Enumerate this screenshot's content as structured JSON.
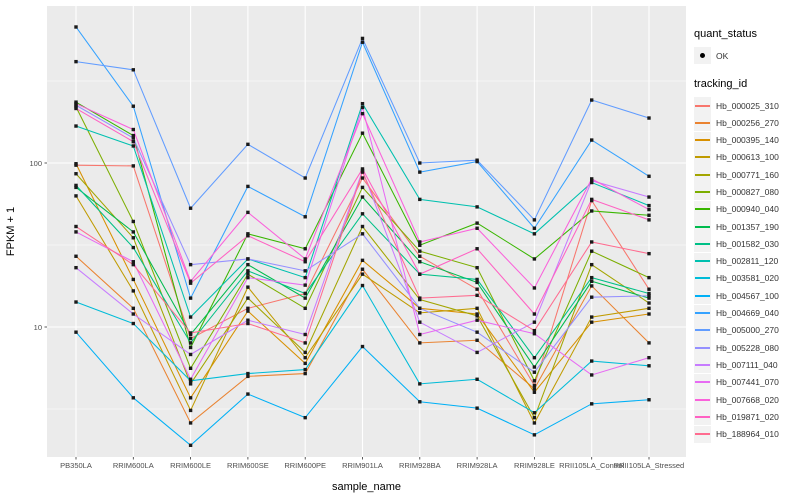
{
  "figure": {
    "background": "#FFFFFF",
    "panel_background": "#EBEBEB",
    "grid_color": "#FFFFFF"
  },
  "axes": {
    "x": {
      "title": "sample_name"
    },
    "y": {
      "title": "FPKM + 1",
      "scale": "log10",
      "tick_labels": [
        "100",
        "10"
      ]
    }
  },
  "legend": {
    "position": "right",
    "quant_status": {
      "title": "quant_status",
      "items": [
        {
          "label": "OK",
          "marker": "black-point"
        }
      ]
    },
    "tracking_id": {
      "title": "tracking_id"
    }
  },
  "chart_data": {
    "type": "line",
    "title": "",
    "xlabel": "sample_name",
    "ylabel": "FPKM + 1",
    "y_scale": "log10",
    "ylim": [
      1.7,
      900
    ],
    "y_major_ticks": [
      10,
      100
    ],
    "y_minor_ticks": [
      3.1623,
      31.623,
      316.23
    ],
    "grid": true,
    "legend_position": "right",
    "point_marker": "small black square (quant_status = OK)",
    "categories": [
      "PB350LA",
      "RRIM600LA",
      "RRIM600LE",
      "RRIM600SE",
      "RRIM600PE",
      "RRIM901LA",
      "RRIM928BA",
      "RRIM928LA",
      "RRIM928LE",
      "RRII105LA_Control",
      "RRII105LA_Stressed"
    ],
    "series": [
      {
        "name": "Hb_000025_310",
        "color": "#F8766D",
        "values": [
          97,
          96,
          8.5,
          13,
          16,
          81,
          27,
          17,
          4.4,
          59,
          17
        ]
      },
      {
        "name": "Hb_000256_270",
        "color": "#EA8331",
        "values": [
          27,
          13,
          2.6,
          5,
          5.2,
          22.5,
          8,
          8.3,
          4.2,
          17.8,
          8
        ]
      },
      {
        "name": "Hb_000395_140",
        "color": "#D89000",
        "values": [
          99,
          19.5,
          3.7,
          12.5,
          6,
          25.5,
          13,
          12,
          4.0,
          10.7,
          12
        ]
      },
      {
        "name": "Hb_000613_100",
        "color": "#C09B00",
        "values": [
          63,
          16.6,
          3.1,
          17.5,
          6.5,
          21,
          12.2,
          13,
          2.6,
          11.5,
          13
        ]
      },
      {
        "name": "Hb_000771_160",
        "color": "#A3A500",
        "values": [
          86,
          35,
          4.5,
          15,
          7,
          41,
          14.7,
          11.7,
          2.8,
          24,
          14
        ]
      },
      {
        "name": "Hb_000827_080",
        "color": "#7CAE00",
        "values": [
          220,
          44,
          5.6,
          21,
          13,
          71,
          29,
          23,
          4.7,
          29,
          20
        ]
      },
      {
        "name": "Hb_000940_040",
        "color": "#39B600",
        "values": [
          235,
          147,
          7.5,
          37,
          30,
          152,
          31.5,
          43,
          26,
          51,
          48
        ]
      },
      {
        "name": "Hb_001357_190",
        "color": "#00BB4E",
        "values": [
          71,
          38,
          9,
          24,
          15,
          62,
          25,
          18.7,
          5.7,
          19,
          15
        ]
      },
      {
        "name": "Hb_001582_030",
        "color": "#00C087",
        "values": [
          73,
          30.5,
          8,
          22,
          16,
          49,
          21,
          19.5,
          6.5,
          20,
          16
        ]
      },
      {
        "name": "Hb_002811_120",
        "color": "#00C0AF",
        "values": [
          168,
          127,
          11.5,
          26,
          20,
          230,
          60,
          54,
          37,
          76,
          55
        ]
      },
      {
        "name": "Hb_003581_020",
        "color": "#00BCD8",
        "values": [
          14.2,
          10.5,
          4.7,
          5.2,
          5.5,
          17.9,
          4.5,
          4.8,
          3.0,
          6.2,
          5.8
        ]
      },
      {
        "name": "Hb_004567_100",
        "color": "#00B0F6",
        "values": [
          9.3,
          3.7,
          1.9,
          3.9,
          2.8,
          7.6,
          3.5,
          3.2,
          2.2,
          3.4,
          3.6
        ]
      },
      {
        "name": "Hb_004669_040",
        "color": "#35A2FF",
        "values": [
          675,
          222,
          15,
          72,
          47,
          545,
          88,
          102,
          40,
          138,
          83
        ]
      },
      {
        "name": "Hb_005000_270",
        "color": "#619CFF",
        "values": [
          415,
          370,
          53,
          130,
          81,
          575,
          100,
          104,
          45,
          242,
          188
        ]
      },
      {
        "name": "Hb_005228_080",
        "color": "#9590FF",
        "values": [
          225,
          142,
          24,
          26,
          22,
          37,
          13,
          9.3,
          5.3,
          15.2,
          15.5
        ]
      },
      {
        "name": "Hb_007111_040",
        "color": "#C77CFF",
        "values": [
          23,
          12,
          6.8,
          11,
          9,
          90,
          10.7,
          7,
          10.7,
          78,
          62
        ]
      },
      {
        "name": "Hb_007441_070",
        "color": "#E76BF3",
        "values": [
          38,
          25,
          4.8,
          20,
          18,
          218,
          9,
          11,
          9.1,
          5.1,
          6.5
        ]
      },
      {
        "name": "Hb_007668_020",
        "color": "#FA62DB",
        "values": [
          230,
          160,
          19,
          50,
          26,
          200,
          33,
          40,
          17.3,
          80,
          52
        ]
      },
      {
        "name": "Hb_019871_020",
        "color": "#FF61C3",
        "values": [
          215,
          135,
          18.5,
          36,
          25,
          92,
          21,
          30,
          12,
          60,
          45
        ]
      },
      {
        "name": "Hb_188964_010",
        "color": "#FF6C90",
        "values": [
          41,
          24,
          9.2,
          10.5,
          8,
          88,
          15,
          15.6,
          9.5,
          33,
          28
        ]
      }
    ]
  }
}
